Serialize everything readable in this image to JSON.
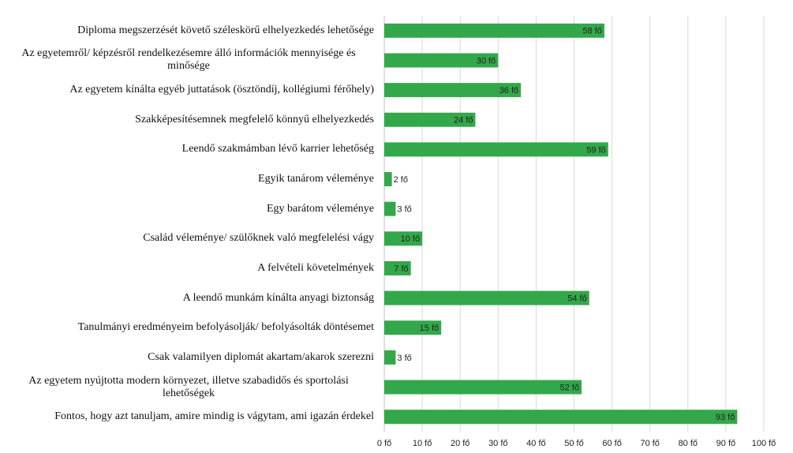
{
  "chart_data": {
    "type": "bar",
    "orientation": "horizontal",
    "categories": [
      "Diploma megszerzését követő széleskörű elhelyezkedés lehetősége",
      "Az egyetemről/ képzésről rendelkezésemre álló információk mennyisége és minősége",
      "Az egyetem kínálta egyéb juttatások (ösztöndíj, kollégiumi férőhely)",
      "Szakképesítésemnek megfelelő könnyű elhelyezkedés",
      "Leendő szakmámban lévő karrier lehetőség",
      "Egyik tanárom véleménye",
      "Egy barátom véleménye",
      "Család véleménye/ szülőknek való megfelelési vágy",
      "A felvételi követelmények",
      "A leendő munkám kínálta anyagi biztonság",
      "Tanulmányi eredményeim befolyásolják/ befolyásolták döntésemet",
      "Csak valamilyen diplomát akartam/akarok szerezni",
      "Az egyetem nyújtotta modern környezet, illetve szabadidős és sportolási lehetőségek",
      "Fontos, hogy azt tanuljam, amire mindig is vágytam, ami igazán érdekel"
    ],
    "values": [
      58,
      30,
      36,
      24,
      59,
      2,
      3,
      10,
      7,
      54,
      15,
      3,
      52,
      93
    ],
    "value_labels": [
      "58 fő",
      "30 fő",
      "36 fő",
      "24 fő",
      "59 fő",
      "2 fő",
      "3 fő",
      "10 fő",
      "7 fő",
      "54 fő",
      "15 fő",
      "3 fő",
      "52 fő",
      "93 fő"
    ],
    "color": "#33a84a",
    "xlim": [
      0,
      100
    ],
    "xticks": [
      {
        "value": 0,
        "label": "0 fő"
      },
      {
        "value": 10,
        "label": "10 fő"
      },
      {
        "value": 20,
        "label": "20 fő"
      },
      {
        "value": 30,
        "label": "30 fő"
      },
      {
        "value": 40,
        "label": "40 fő"
      },
      {
        "value": 50,
        "label": "50 fő"
      },
      {
        "value": 60,
        "label": "60 fő"
      },
      {
        "value": 70,
        "label": "70 fő"
      },
      {
        "value": 80,
        "label": "80 fő"
      },
      {
        "value": 90,
        "label": "90 fő"
      },
      {
        "value": 100,
        "label": "100 fő"
      }
    ],
    "grid": true
  }
}
